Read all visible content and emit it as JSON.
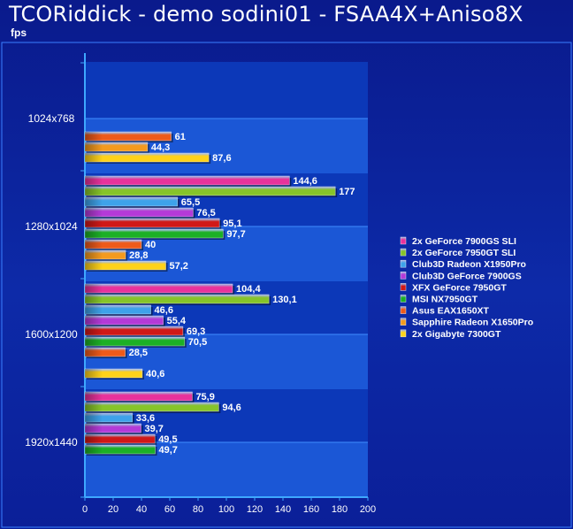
{
  "chart_data": {
    "type": "bar",
    "orientation": "horizontal",
    "title": "TCORiddick - demo sodini01 - FSAA4X+Aniso8X",
    "unit_label": "fps",
    "xlim": [
      0,
      200
    ],
    "x_ticks": [
      0,
      20,
      40,
      60,
      80,
      100,
      120,
      140,
      160,
      180,
      200
    ],
    "categories": [
      "1024x768",
      "1280x1024",
      "1600x1200",
      "1920x1440"
    ],
    "legend_position": "right",
    "series": [
      {
        "name": "2x GeForce 7900GS SLI",
        "color": "#e8329c",
        "values": [
          null,
          144.6,
          104.4,
          75.9
        ]
      },
      {
        "name": "2x GeForce 7950GT SLI",
        "color": "#86c42a",
        "values": [
          null,
          177,
          130.1,
          94.6
        ]
      },
      {
        "name": "Club3D Radeon X1950Pro",
        "color": "#3ea2ea",
        "values": [
          null,
          65.5,
          46.6,
          33.6
        ]
      },
      {
        "name": "Club3D GeForce 7900GS",
        "color": "#b43ad8",
        "values": [
          null,
          76.5,
          55.4,
          39.7
        ]
      },
      {
        "name": "XFX GeForce 7950GT",
        "color": "#d01818",
        "values": [
          null,
          95.1,
          69.3,
          49.5
        ]
      },
      {
        "name": "MSI NX7950GT",
        "color": "#1cb026",
        "values": [
          null,
          97.7,
          70.5,
          49.7
        ]
      },
      {
        "name": "Asus EAX1650XT",
        "color": "#ee5a1a",
        "values": [
          61,
          40,
          28.5,
          null
        ]
      },
      {
        "name": "Sapphire Radeon X1650Pro",
        "color": "#f49a1e",
        "values": [
          44.3,
          28.8,
          null,
          null
        ]
      },
      {
        "name": "2x Gigabyte 7300GT",
        "color": "#ffd21a",
        "values": [
          87.6,
          57.2,
          40.6,
          null
        ]
      }
    ],
    "value_labels": [
      [
        "",
        "",
        "",
        "",
        "",
        "",
        "61",
        "44,3",
        "87,6"
      ],
      [
        "144,6",
        "177",
        "65,5",
        "76,5",
        "95,1",
        "97,7",
        "40",
        "28,8",
        "57,2"
      ],
      [
        "104,4",
        "130,1",
        "46,6",
        "55,4",
        "69,3",
        "70,5",
        "28,5",
        "",
        "40,6"
      ],
      [
        "75,9",
        "94,6",
        "33,6",
        "39,7",
        "49,5",
        "49,7",
        "",
        "",
        ""
      ]
    ]
  }
}
